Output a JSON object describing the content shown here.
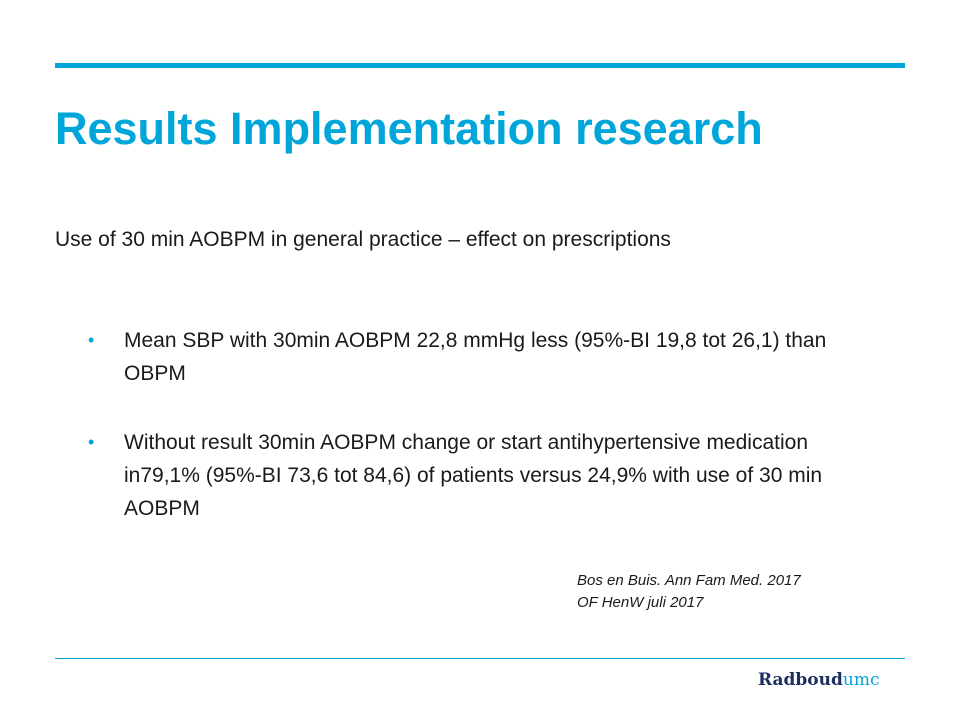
{
  "slide": {
    "title": "Results Implementation research",
    "subtitle": "Use of 30 min AOBPM in general practice – effect on prescriptions",
    "bullets": [
      {
        "marker": "•",
        "text": "Mean SBP with 30min AOBPM 22,8 mmHg less (95%-BI 19,8 tot 26,1) than OBPM"
      },
      {
        "marker": "•",
        "text": "Without result 30min AOBPM change or start antihypertensive medication in79,1% (95%-BI 73,6 tot 84,6) of patients  versus 24,9% with use of 30 min AOBPM"
      }
    ],
    "references": [
      "Bos en Buis. Ann Fam Med. 2017",
      "OF HenW juli 2017"
    ]
  },
  "footer": {
    "logo_main": "Radboud",
    "logo_sub": "umc"
  },
  "colors": {
    "accent": "#00a5d9",
    "logo_navy": "#1c2f60",
    "text": "#1a1a1a"
  }
}
